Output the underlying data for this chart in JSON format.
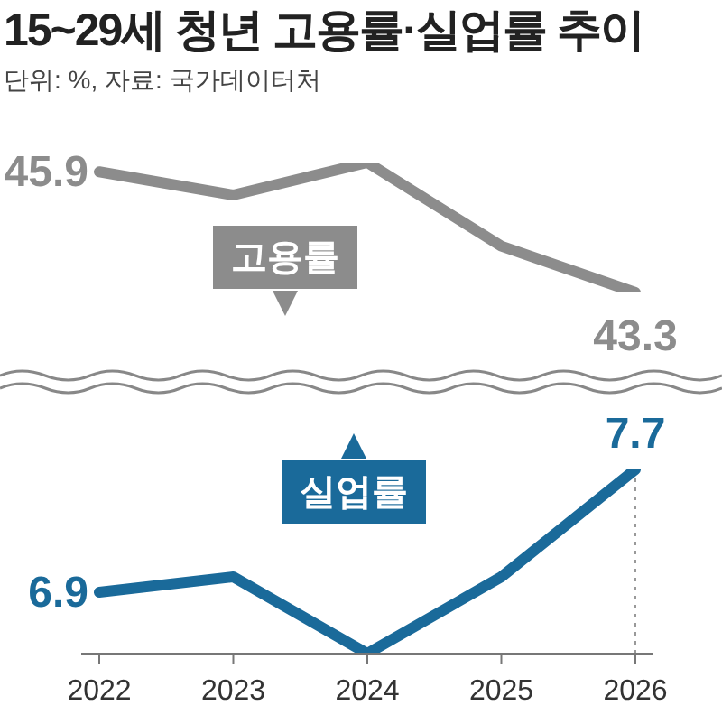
{
  "chart_data": [
    {
      "type": "line",
      "title": "15~29세 청년 고용률·실업률 추이",
      "subtitle": "단위: %, 자료: 국가데이터처",
      "categories": [
        "2022",
        "2023",
        "2024",
        "2025",
        "2026"
      ],
      "series": [
        {
          "name": "고용률",
          "color": "#8c8c8c",
          "values": [
            45.9,
            45.4,
            46.1,
            44.3,
            43.3
          ],
          "value_labels": [
            "45.9",
            null,
            null,
            null,
            "43.3"
          ]
        }
      ],
      "tick_labels": false,
      "legend": "bottom",
      "grid": false,
      "marker": "none",
      "line_style": "solid"
    },
    {
      "type": "line",
      "categories": [
        "2022",
        "2023",
        "2024",
        "2025",
        "2026"
      ],
      "series": [
        {
          "name": "실업률",
          "color": "#1a6a9a",
          "values": [
            6.9,
            7.0,
            6.5,
            7.0,
            7.7
          ],
          "value_labels": [
            "6.9",
            null,
            null,
            null,
            "7.7"
          ]
        }
      ],
      "tick_labels": "x",
      "legend": "top",
      "grid": false,
      "marker": "none",
      "line_style": "solid",
      "ref_lines": [
        {
          "axis": "x",
          "value": "2026",
          "color": "#999999",
          "line_style": "dotted"
        }
      ]
    }
  ]
}
